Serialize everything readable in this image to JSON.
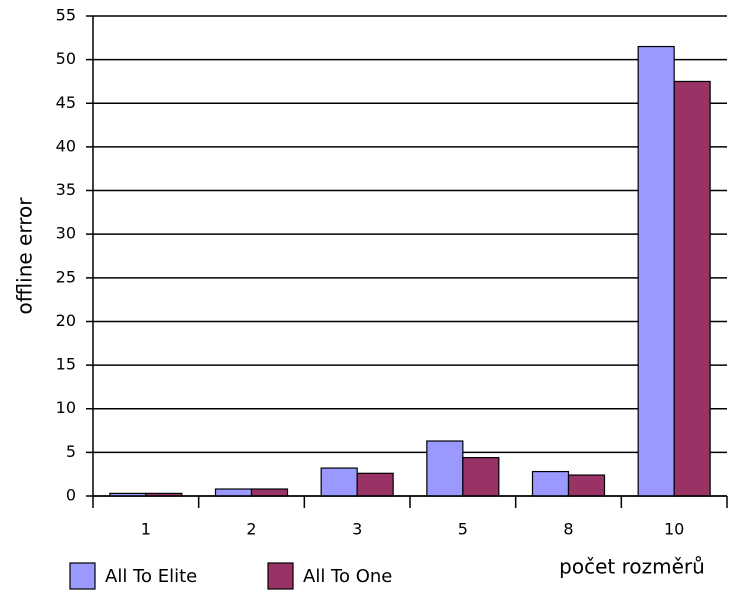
{
  "chart_data": {
    "type": "bar",
    "y_label": "offline error",
    "x_label": "počet rozměrů",
    "categories": [
      "1",
      "2",
      "3",
      "5",
      "8",
      "10"
    ],
    "series": [
      {
        "name": "All To Elite",
        "color": "#9999ff",
        "values": [
          0.3,
          0.8,
          3.2,
          6.3,
          2.8,
          51.5
        ]
      },
      {
        "name": "All To One",
        "color": "#993366",
        "values": [
          0.3,
          0.8,
          2.6,
          4.4,
          2.4,
          47.5
        ]
      }
    ],
    "ylim": [
      0,
      55
    ],
    "yticks": [
      0,
      5,
      10,
      15,
      20,
      25,
      30,
      35,
      40,
      45,
      50,
      55
    ],
    "grid": true
  }
}
